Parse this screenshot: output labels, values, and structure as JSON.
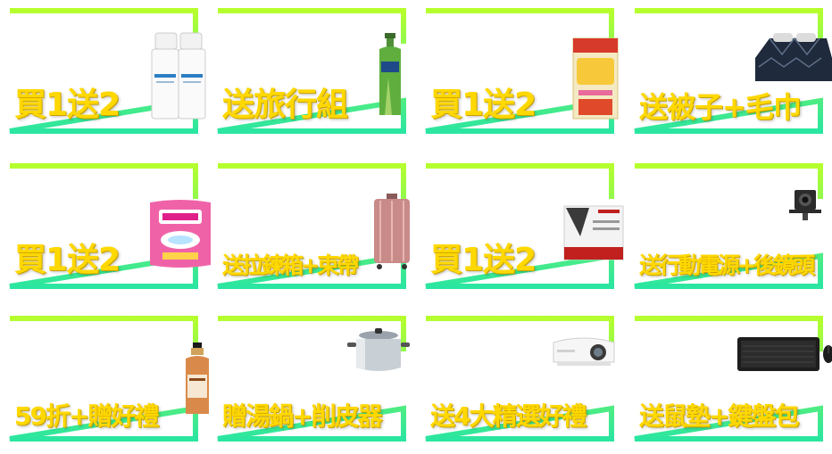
{
  "colors": {
    "frame_top": "#b6ff2e",
    "frame_bottom": "#2be6a0",
    "label_fill": "#ffd800"
  },
  "tiles": [
    {
      "label": "買1送2",
      "product_icon": "lotion-bottles-icon"
    },
    {
      "label": "送旅行組",
      "product_icon": "shampoo-bottle-icon"
    },
    {
      "label": "買1送2",
      "product_icon": "collagen-box-icon"
    },
    {
      "label": "送被子+毛巾",
      "product_icon": "bedding-icon"
    },
    {
      "label": "買1送2",
      "product_icon": "detergent-pack-icon"
    },
    {
      "label": "送拉鍊箱+束帶",
      "product_icon": "suitcase-icon"
    },
    {
      "label": "買1送2",
      "product_icon": "mask-box-icon"
    },
    {
      "label": "送行動電源+後鏡頭",
      "product_icon": "camera-icon"
    },
    {
      "label": "59折+贈好禮",
      "product_icon": "oil-bottle-icon"
    },
    {
      "label": "贈湯鍋+削皮器",
      "product_icon": "stock-pot-icon"
    },
    {
      "label": "送4大精選好禮",
      "product_icon": "projector-icon"
    },
    {
      "label": "送鼠墊+鍵盤包",
      "product_icon": "keyboard-mouse-icon"
    }
  ]
}
